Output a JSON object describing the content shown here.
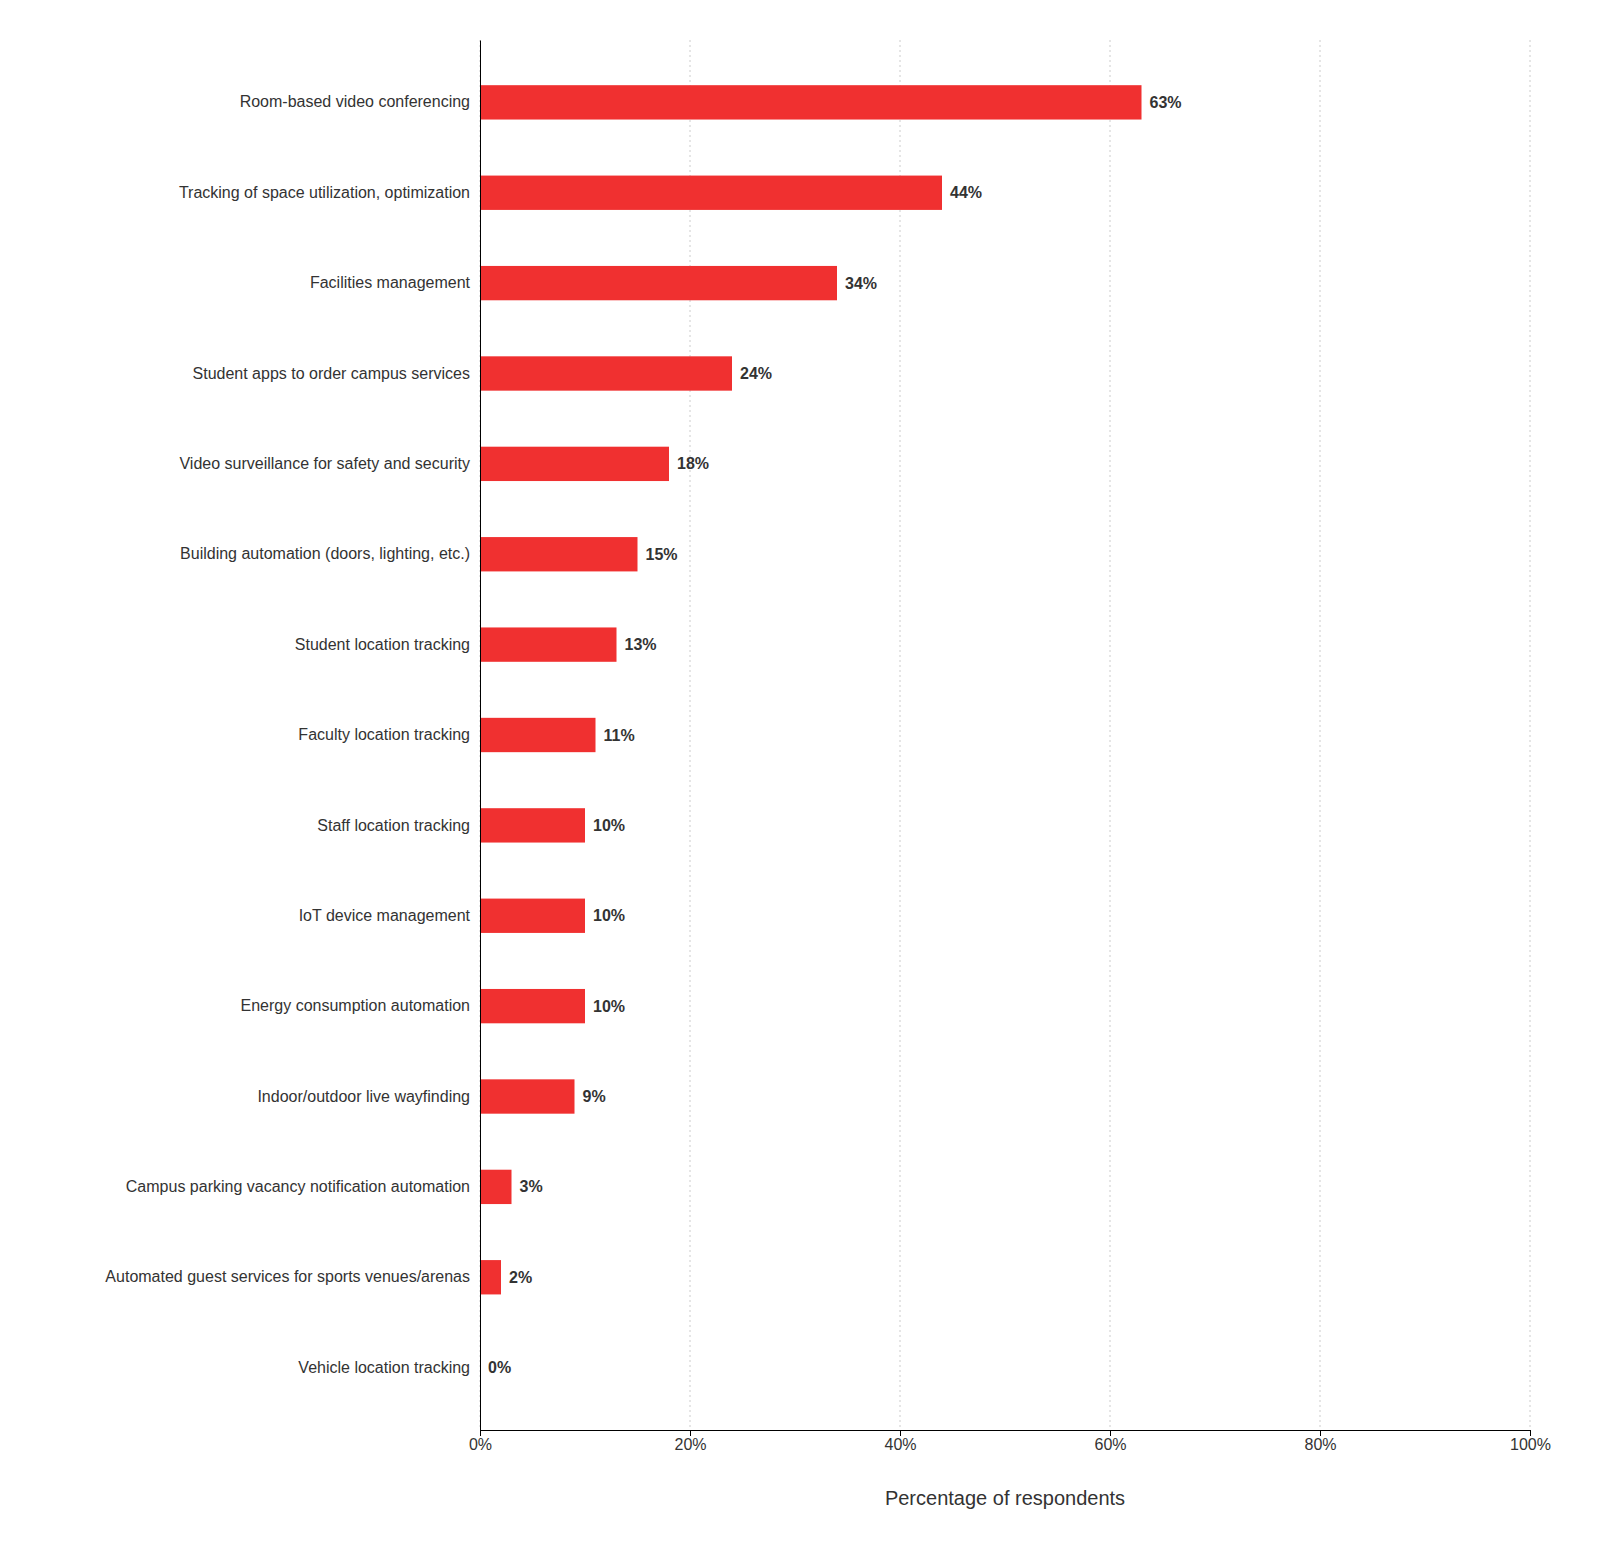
{
  "chart_data": {
    "type": "bar",
    "orientation": "horizontal",
    "categories": [
      "Room-based video conferencing",
      "Tracking of space utilization, optimization",
      "Facilities management",
      "Student apps to order campus services",
      "Video surveillance for safety and security",
      "Building automation (doors, lighting, etc.)",
      "Student location tracking",
      "Faculty location tracking",
      "Staff location tracking",
      "IoT device management",
      "Energy consumption automation",
      "Indoor/outdoor live wayfinding",
      "Campus parking vacancy notification automation",
      "Automated guest services for sports venues/arenas",
      "Vehicle location tracking"
    ],
    "values": [
      63,
      44,
      34,
      24,
      18,
      15,
      13,
      11,
      10,
      10,
      10,
      9,
      3,
      2,
      0
    ],
    "value_labels": [
      "63%",
      "44%",
      "34%",
      "24%",
      "18%",
      "15%",
      "13%",
      "11%",
      "10%",
      "10%",
      "10%",
      "9%",
      "3%",
      "2%",
      "0%"
    ],
    "data_labels": true,
    "color": "#f03030",
    "xlabel": "Percentage of respondents",
    "xlim": [
      0,
      100
    ],
    "xticks": [
      {
        "value": 0,
        "label": "0%"
      },
      {
        "value": 20,
        "label": "20%"
      },
      {
        "value": 40,
        "label": "40%"
      },
      {
        "value": 60,
        "label": "60%"
      },
      {
        "value": 80,
        "label": "80%"
      },
      {
        "value": 100,
        "label": "100%"
      }
    ],
    "grid": true
  }
}
